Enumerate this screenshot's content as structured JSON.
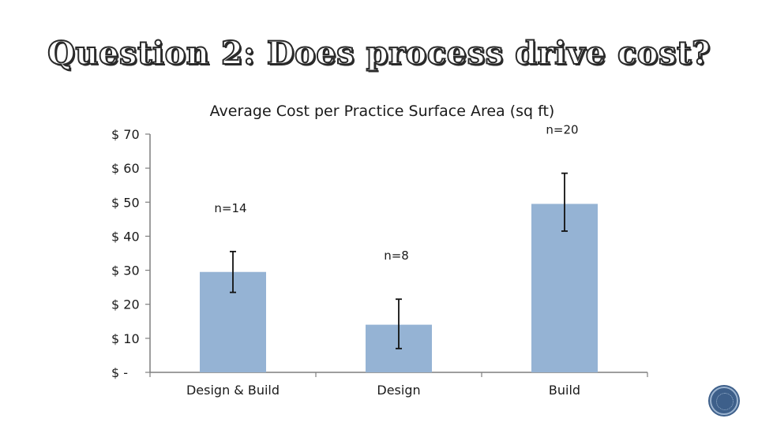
{
  "slide": {
    "title": "Question 2: Does process drive cost?"
  },
  "colors": {
    "bar": "#95b3d4",
    "axis": "#7f7f7f",
    "text": "#1a1a1a",
    "badge": "#3d5f8a"
  },
  "chart_data": {
    "type": "bar",
    "title": "Average Cost per Practice Surface Area (sq ft)",
    "xlabel": "",
    "ylabel": "",
    "categories": [
      "Design & Build",
      "Design",
      "Build"
    ],
    "values": [
      29.5,
      14,
      49.5
    ],
    "error_low": [
      23.5,
      7,
      41.5
    ],
    "error_high": [
      35.5,
      21.5,
      58.5
    ],
    "annotations": [
      "n=14",
      "n=8",
      "n=20"
    ],
    "ylim": [
      0,
      70
    ],
    "yticks": [
      0,
      10,
      20,
      30,
      40,
      50,
      60,
      70
    ],
    "ytick_labels": [
      "$ -",
      "$ 10",
      "$ 20",
      "$ 30",
      "$ 40",
      "$ 50",
      "$ 60",
      "$ 70"
    ],
    "grid": false,
    "legend": "none"
  }
}
